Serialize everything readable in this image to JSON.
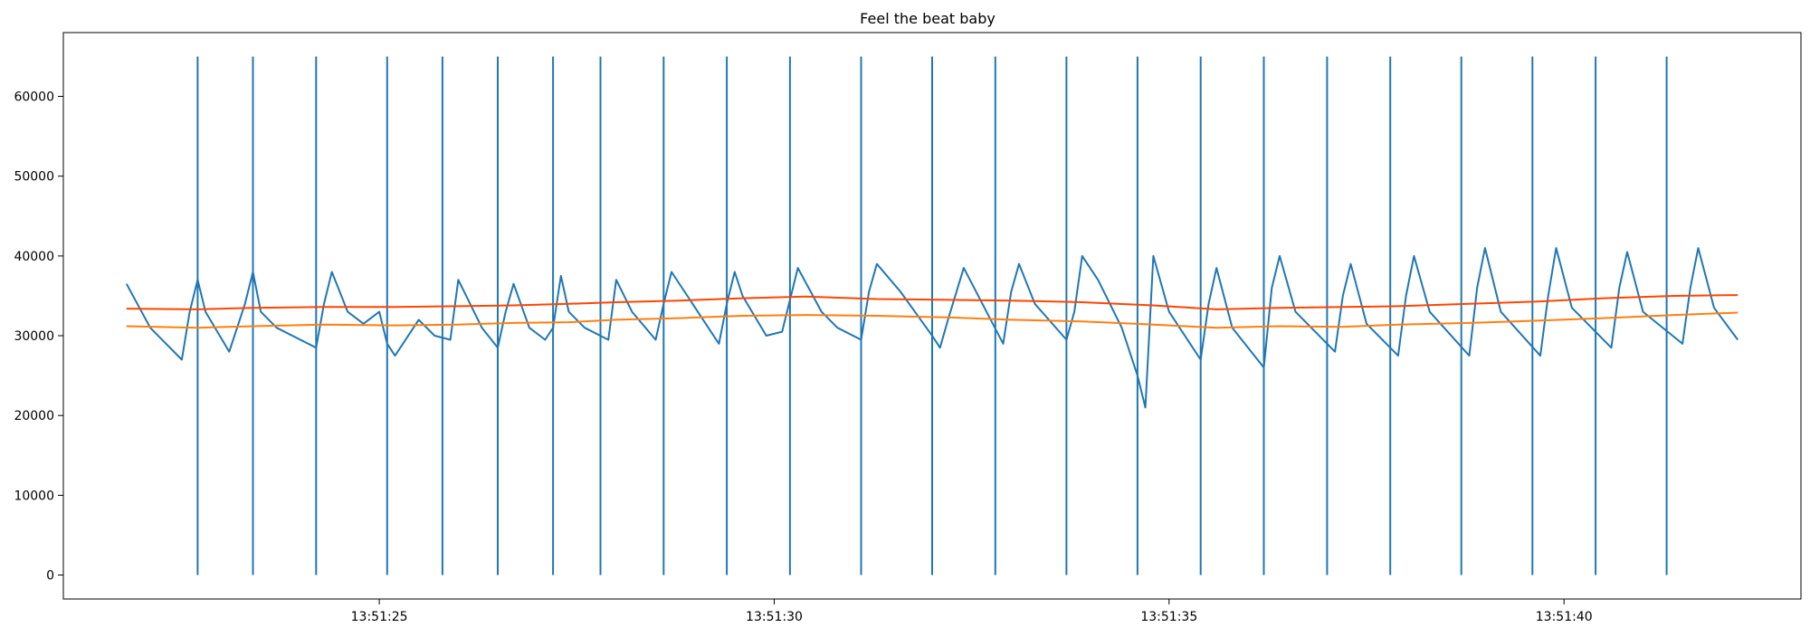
{
  "chart_data": {
    "type": "line",
    "title": "Feel the beat baby",
    "xlabel": "",
    "ylabel": "",
    "x_unit": "time (HH:MM:SS)",
    "x_start": "13:51:21.8",
    "x_end": "13:51:42.2",
    "xlim": [
      "13:51:21.0",
      "13:51:43.0"
    ],
    "ylim": [
      -3000,
      68000
    ],
    "xticks": [
      "13:51:25",
      "13:51:30",
      "13:51:35",
      "13:51:40"
    ],
    "yticks": [
      0,
      10000,
      20000,
      30000,
      40000,
      50000,
      60000
    ],
    "grid": false,
    "legend": "none",
    "colors": {
      "signal": "#1f77b4",
      "avg_short": "#ff7f0e",
      "avg_long": "#ff4500",
      "beats": "#1f77b4"
    },
    "series": [
      {
        "key": "signal",
        "times": [
          "13:51:21.8",
          "13:51:22.1",
          "13:51:22.3",
          "13:51:22.5",
          "13:51:22.6",
          "13:51:22.7",
          "13:51:22.8",
          "13:51:23.1",
          "13:51:23.3",
          "13:51:23.4",
          "13:51:23.5",
          "13:51:23.7",
          "13:51:24.2",
          "13:51:24.3",
          "13:51:24.4",
          "13:51:24.6",
          "13:51:24.8",
          "13:51:25.0",
          "13:51:25.1",
          "13:51:25.2",
          "13:51:25.5",
          "13:51:25.7",
          "13:51:25.9",
          "13:51:26.0",
          "13:51:26.3",
          "13:51:26.5",
          "13:51:26.6",
          "13:51:26.7",
          "13:51:26.9",
          "13:51:27.1",
          "13:51:27.2",
          "13:51:27.3",
          "13:51:27.4",
          "13:51:27.6",
          "13:51:27.9",
          "13:51:28.0",
          "13:51:28.2",
          "13:51:28.5",
          "13:51:28.6",
          "13:51:28.7",
          "13:51:28.9",
          "13:51:29.3",
          "13:51:29.4",
          "13:51:29.5",
          "13:51:29.6",
          "13:51:29.9",
          "13:51:30.1",
          "13:51:30.3",
          "13:51:30.6",
          "13:51:30.8",
          "13:51:31.1",
          "13:51:31.2",
          "13:51:31.3",
          "13:51:31.6",
          "13:51:32.0",
          "13:51:32.1",
          "13:51:32.2",
          "13:51:32.4",
          "13:51:32.9",
          "13:51:33.0",
          "13:51:33.1",
          "13:51:33.3",
          "13:51:33.7",
          "13:51:33.8",
          "13:51:33.9",
          "13:51:34.1",
          "13:51:34.4",
          "13:51:34.6",
          "13:51:34.7",
          "13:51:34.8",
          "13:51:35.0",
          "13:51:35.4",
          "13:51:35.5",
          "13:51:35.6",
          "13:51:35.8",
          "13:51:36.2",
          "13:51:36.3",
          "13:51:36.4",
          "13:51:36.6",
          "13:51:37.1",
          "13:51:37.2",
          "13:51:37.3",
          "13:51:37.5",
          "13:51:37.9",
          "13:51:38.0",
          "13:51:38.1",
          "13:51:38.3",
          "13:51:38.8",
          "13:51:38.9",
          "13:51:39.0",
          "13:51:39.2",
          "13:51:39.7",
          "13:51:39.8",
          "13:51:39.9",
          "13:51:40.1",
          "13:51:40.6",
          "13:51:40.7",
          "13:51:40.8",
          "13:51:41.0",
          "13:51:41.5",
          "13:51:41.6",
          "13:51:41.7",
          "13:51:41.9",
          "13:51:42.2"
        ],
        "values": [
          36500,
          31000,
          29000,
          27000,
          33000,
          37000,
          33000,
          28000,
          34000,
          38000,
          33000,
          31000,
          28500,
          34000,
          38000,
          33000,
          31500,
          33000,
          29000,
          27500,
          32000,
          30000,
          29500,
          37000,
          31000,
          28500,
          33000,
          36500,
          31000,
          29500,
          31000,
          37500,
          33000,
          31000,
          29500,
          37000,
          33000,
          29500,
          34000,
          38000,
          35000,
          29000,
          34000,
          38000,
          35000,
          30000,
          30500,
          38500,
          33000,
          31000,
          29500,
          35500,
          39000,
          35500,
          30000,
          28500,
          32000,
          38500,
          29000,
          35500,
          39000,
          34000,
          29500,
          33000,
          40000,
          37000,
          31000,
          25000,
          21000,
          40000,
          33000,
          27000,
          34000,
          38500,
          31000,
          26000,
          36000,
          40000,
          33000,
          28000,
          35000,
          39000,
          31500,
          27500,
          35000,
          40000,
          33000,
          27500,
          36000,
          41000,
          33000,
          27500,
          35000,
          41000,
          33500,
          28500,
          36000,
          40500,
          33000,
          29000,
          36000,
          41000,
          33500,
          29500
        ],
        "line_width": 2
      },
      {
        "key": "avg_short",
        "times": [
          "13:51:21.8",
          "13:51:22.7",
          "13:51:23.4",
          "13:51:24.3",
          "13:51:25.2",
          "13:51:26.0",
          "13:51:26.7",
          "13:51:27.4",
          "13:51:28.0",
          "13:51:28.8",
          "13:51:29.6",
          "13:51:30.4",
          "13:51:31.3",
          "13:51:32.2",
          "13:51:33.0",
          "13:51:33.9",
          "13:51:34.8",
          "13:51:35.6",
          "13:51:36.4",
          "13:51:37.2",
          "13:51:37.9",
          "13:51:38.8",
          "13:51:39.7",
          "13:51:40.5",
          "13:51:41.4",
          "13:51:42.2"
        ],
        "values": [
          31200,
          31000,
          31200,
          31400,
          31300,
          31400,
          31600,
          31700,
          32000,
          32200,
          32500,
          32600,
          32500,
          32300,
          32000,
          31800,
          31400,
          31000,
          31200,
          31100,
          31400,
          31600,
          31900,
          32200,
          32600,
          32900
        ],
        "line_width": 2
      },
      {
        "key": "avg_long",
        "times": [
          "13:51:21.8",
          "13:51:22.7",
          "13:51:23.4",
          "13:51:24.3",
          "13:51:25.2",
          "13:51:26.0",
          "13:51:26.7",
          "13:51:27.4",
          "13:51:28.0",
          "13:51:28.8",
          "13:51:29.6",
          "13:51:30.4",
          "13:51:31.3",
          "13:51:32.2",
          "13:51:33.0",
          "13:51:33.9",
          "13:51:34.8",
          "13:51:35.6",
          "13:51:36.4",
          "13:51:37.2",
          "13:51:37.9",
          "13:51:38.8",
          "13:51:39.7",
          "13:51:40.5",
          "13:51:41.4",
          "13:51:42.2"
        ],
        "values": [
          33400,
          33300,
          33500,
          33600,
          33600,
          33700,
          33800,
          34000,
          34200,
          34400,
          34700,
          34900,
          34600,
          34500,
          34400,
          34200,
          33800,
          33300,
          33500,
          33600,
          33700,
          34000,
          34300,
          34700,
          35000,
          35100
        ],
        "line_width": 2
      }
    ],
    "beat_markers": {
      "key": "beats",
      "ymin": 0,
      "ymax": 65000,
      "line_width": 2,
      "times": [
        "13:51:22.7",
        "13:51:23.4",
        "13:51:24.2",
        "13:51:25.1",
        "13:51:25.8",
        "13:51:26.5",
        "13:51:27.2",
        "13:51:27.8",
        "13:51:28.6",
        "13:51:29.4",
        "13:51:30.2",
        "13:51:31.1",
        "13:51:32.0",
        "13:51:32.8",
        "13:51:33.7",
        "13:51:34.6",
        "13:51:35.4",
        "13:51:36.2",
        "13:51:37.0",
        "13:51:37.8",
        "13:51:38.7",
        "13:51:39.6",
        "13:51:40.4",
        "13:51:41.3"
      ]
    }
  }
}
